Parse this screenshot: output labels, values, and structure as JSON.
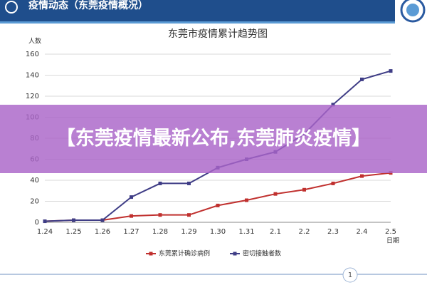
{
  "header": {
    "title": "疫情动态（东莞疫情概况）"
  },
  "chart_data": {
    "type": "line",
    "title": "东莞市疫情累计趋势图",
    "y_label": "人数",
    "x_label": "日期",
    "categories": [
      "1.24",
      "1.25",
      "1.26",
      "1.27",
      "1.28",
      "1.29",
      "1.30",
      "1.31",
      "2.1",
      "2.2",
      "2.3",
      "2.4",
      "2.5"
    ],
    "series": [
      {
        "name": "东莞累计确诊病例",
        "color": "#c0302e",
        "values": [
          1,
          2,
          2,
          6,
          7,
          7,
          16,
          21,
          27,
          31,
          37,
          44,
          47
        ]
      },
      {
        "name": "密切接触者数",
        "color": "#3f3d86",
        "values": [
          1,
          2,
          2,
          24,
          37,
          37,
          52,
          60,
          67,
          84,
          112,
          136,
          144
        ]
      }
    ],
    "ylim": [
      0,
      160
    ],
    "yticks": [
      0,
      20,
      40,
      60,
      80,
      100,
      120,
      140,
      160
    ],
    "grid": true
  },
  "banner": "【东莞疫情最新公布,东莞肺炎疫情】",
  "page_number": "1"
}
